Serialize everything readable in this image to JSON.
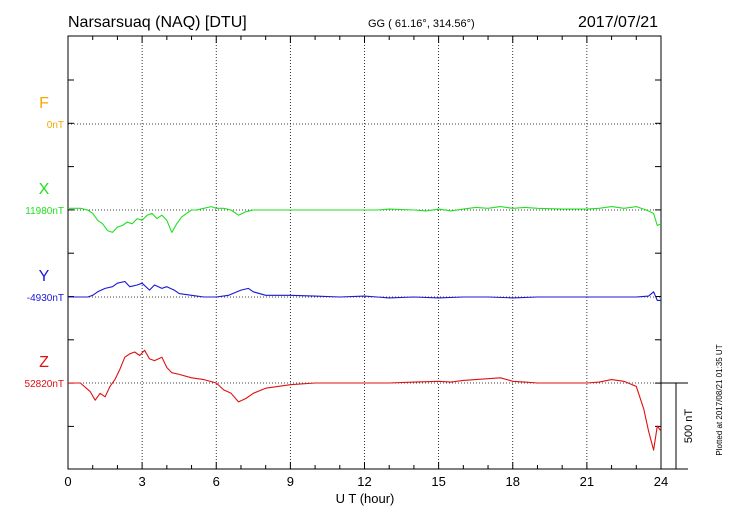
{
  "header": {
    "station": "Narsarsuaq (NAQ)  [DTU]",
    "coords": "GG ( 61.16°, 314.56°)",
    "date": "2017/07/21"
  },
  "footer_note": "Plotted at 2017/08/21 01:35 UT",
  "chart_data": {
    "type": "line",
    "xlabel": "U T (hour)",
    "xlim": [
      0,
      24
    ],
    "xticks": [
      "0",
      "3",
      "6",
      "9",
      "12",
      "15",
      "18",
      "21",
      "24"
    ],
    "grid": true,
    "scale_bar": "500 nT",
    "components": [
      {
        "name": "F",
        "baseline": "0nT",
        "color": "#f5a800",
        "values": []
      },
      {
        "name": "X",
        "baseline": "11980nT",
        "color": "#22e022",
        "x": [
          0,
          0.5,
          0.8,
          1.0,
          1.2,
          1.4,
          1.6,
          1.8,
          2.0,
          2.2,
          2.4,
          2.6,
          2.8,
          3.0,
          3.2,
          3.4,
          3.6,
          3.8,
          4.0,
          4.2,
          4.4,
          4.6,
          4.8,
          5.0,
          5.2,
          5.5,
          5.8,
          6.0,
          6.3,
          6.6,
          6.9,
          7.2,
          7.5,
          8.0,
          8.5,
          9,
          10,
          11,
          12,
          12.5,
          13,
          14,
          14.5,
          15,
          15.5,
          16,
          16.5,
          17,
          17.5,
          18,
          18.5,
          19,
          20,
          21,
          21.5,
          22,
          22.5,
          23,
          23.4,
          23.7,
          23.85,
          24
        ],
        "values": [
          10,
          10,
          0,
          -20,
          -60,
          -80,
          -120,
          -130,
          -100,
          -90,
          -70,
          -80,
          -50,
          -60,
          -30,
          -20,
          -50,
          -30,
          -60,
          -130,
          -80,
          -40,
          -20,
          0,
          0,
          10,
          20,
          10,
          10,
          0,
          -30,
          -10,
          0,
          0,
          0,
          0,
          0,
          0,
          0,
          0,
          5,
          0,
          -5,
          5,
          -5,
          5,
          15,
          10,
          20,
          10,
          15,
          10,
          5,
          5,
          10,
          20,
          10,
          20,
          0,
          -20,
          -90,
          -80
        ]
      },
      {
        "name": "Y",
        "baseline": "-4930nT",
        "color": "#1818d8",
        "x": [
          0,
          0.8,
          1.0,
          1.2,
          1.5,
          1.8,
          2.0,
          2.3,
          2.5,
          2.8,
          3.0,
          3.3,
          3.5,
          3.8,
          4.0,
          4.3,
          4.5,
          5.0,
          5.5,
          6.0,
          6.5,
          7.0,
          7.3,
          7.5,
          8.0,
          9,
          10,
          11,
          12,
          12.5,
          13,
          14,
          15,
          16,
          17,
          18,
          19,
          20,
          21,
          22,
          23,
          23.5,
          23.7,
          23.85,
          24
        ],
        "values": [
          0,
          0,
          10,
          30,
          50,
          60,
          80,
          90,
          60,
          70,
          80,
          40,
          70,
          50,
          60,
          40,
          20,
          10,
          0,
          0,
          10,
          40,
          50,
          30,
          10,
          10,
          5,
          0,
          5,
          0,
          -5,
          0,
          -5,
          0,
          0,
          -5,
          0,
          0,
          0,
          0,
          0,
          5,
          30,
          -20,
          -20
        ]
      },
      {
        "name": "Z",
        "baseline": "52820nT",
        "color": "#e01010",
        "x": [
          0,
          0.5,
          0.9,
          1.1,
          1.3,
          1.5,
          1.7,
          1.9,
          2.1,
          2.3,
          2.5,
          2.7,
          2.9,
          3.1,
          3.3,
          3.5,
          3.8,
          4.0,
          4.2,
          4.5,
          5.0,
          5.5,
          6.0,
          6.3,
          6.6,
          6.9,
          7.2,
          7.5,
          8.0,
          9,
          10,
          11,
          12,
          13,
          14,
          15,
          15.5,
          16,
          17,
          17.5,
          18,
          18.5,
          19,
          20,
          21,
          21.5,
          22,
          22.5,
          23,
          23.3,
          23.5,
          23.7,
          23.85,
          24
        ],
        "values": [
          0,
          0,
          -50,
          -100,
          -60,
          -80,
          -20,
          20,
          80,
          150,
          170,
          180,
          160,
          190,
          140,
          130,
          150,
          90,
          60,
          50,
          30,
          20,
          0,
          -40,
          -60,
          -110,
          -90,
          -60,
          -30,
          -10,
          0,
          0,
          0,
          0,
          5,
          10,
          5,
          15,
          25,
          30,
          10,
          5,
          0,
          0,
          0,
          5,
          20,
          10,
          -20,
          -150,
          -280,
          -390,
          -250,
          -280
        ]
      }
    ]
  }
}
